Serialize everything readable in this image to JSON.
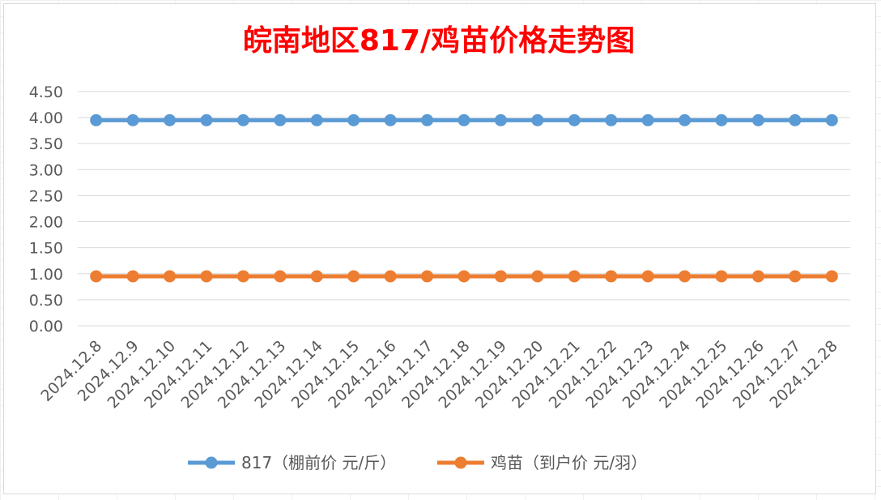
{
  "chart_data": {
    "type": "line",
    "title": "皖南地区817/鸡苗价格走势图",
    "xlabel": "",
    "ylabel": "",
    "categories": [
      "2024.12.8",
      "2024.12.9",
      "2024.12.10",
      "2024.12.11",
      "2024.12.12",
      "2024.12.13",
      "2024.12.14",
      "2024.12.15",
      "2024.12.16",
      "2024.12.17",
      "2024.12.18",
      "2024.12.19",
      "2024.12.20",
      "2024.12.21",
      "2024.12.22",
      "2024.12.23",
      "2024.12.24",
      "2024.12.25",
      "2024.12.26",
      "2024.12.27",
      "2024.12.28"
    ],
    "series": [
      {
        "name": "817（棚前价 元/斤）",
        "color": "#5b9bd5",
        "values": [
          3.95,
          3.95,
          3.95,
          3.95,
          3.95,
          3.95,
          3.95,
          3.95,
          3.95,
          3.95,
          3.95,
          3.95,
          3.95,
          3.95,
          3.95,
          3.95,
          3.95,
          3.95,
          3.95,
          3.95,
          3.95
        ]
      },
      {
        "name": "鸡苗（到户价 元/羽）",
        "color": "#ed7d31",
        "values": [
          0.95,
          0.95,
          0.95,
          0.95,
          0.95,
          0.95,
          0.95,
          0.95,
          0.95,
          0.95,
          0.95,
          0.95,
          0.95,
          0.95,
          0.95,
          0.95,
          0.95,
          0.95,
          0.95,
          0.95,
          0.95
        ]
      }
    ],
    "ylim": [
      0,
      4.5
    ],
    "yticks": [
      "0.00",
      "0.50",
      "1.00",
      "1.50",
      "2.00",
      "2.50",
      "3.00",
      "3.50",
      "4.00",
      "4.50"
    ],
    "grid": true,
    "legend": "bottom"
  }
}
